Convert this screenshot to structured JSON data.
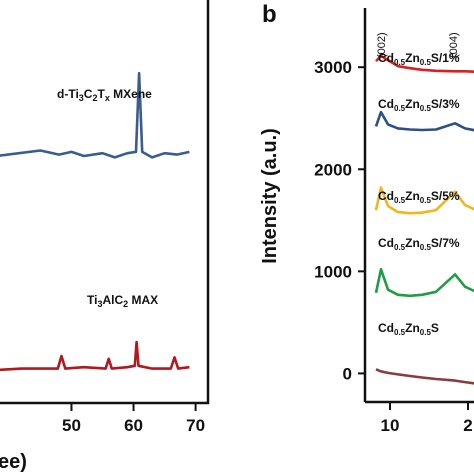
{
  "chart_data": [
    {
      "type": "line",
      "xlabel": "ee)",
      "ylabel": "",
      "xlim": [
        38,
        72
      ],
      "x_ticks": [
        "50",
        "60",
        "70"
      ],
      "tick_vals": [
        50,
        60,
        70
      ],
      "series": [
        {
          "name": "d-Ti3C2Tx MXene",
          "label_html": "d-Ti<tspan font-size='9' dy='3'>3</tspan><tspan dy='-3'>C</tspan><tspan font-size='9' dy='3'>2</tspan><tspan dy='-3'>T</tspan><tspan font-size='9' dy='3'>x</tspan><tspan dy='-3'> MXene</tspan>",
          "color": "#3a5d8f",
          "base": 0.0,
          "x": [
            38,
            45,
            48,
            50,
            52,
            55,
            57,
            59,
            60.4,
            60.9,
            61.4,
            63,
            65,
            67,
            69
          ],
          "y": [
            0,
            4,
            1,
            3,
            0,
            2,
            -1,
            2,
            3,
            60,
            3,
            -1,
            2,
            1,
            3
          ]
        },
        {
          "name": "Ti3AlC2 MAX",
          "label_html": "Ti<tspan font-size='9' dy='3'>3</tspan><tspan dy='-3'>AlC</tspan><tspan font-size='9' dy='3'>2</tspan><tspan dy='-3'> MAX</tspan>",
          "color": "#b0191e",
          "base": 0.0,
          "x": [
            38,
            42,
            47.8,
            48.4,
            49,
            52,
            55.5,
            56,
            56.5,
            59,
            60.2,
            60.5,
            60.8,
            63,
            66,
            66.6,
            67.2,
            69
          ],
          "y": [
            0,
            1,
            1,
            10,
            1,
            2,
            1,
            8,
            1,
            2,
            3,
            20,
            3,
            1,
            1,
            9,
            1,
            2
          ]
        }
      ]
    },
    {
      "type": "line",
      "ylabel": "Intensity (a.u.)",
      "ylim": [
        -280,
        3580
      ],
      "y_ticks": [
        "0",
        "1000",
        "2000",
        "3000"
      ],
      "y_tick_vals": [
        0,
        1000,
        2000,
        3000
      ],
      "x_ticks": [
        "10",
        "2"
      ],
      "peak_labels": [
        "(002)",
        "(004)"
      ],
      "series": [
        {
          "name": "Cd0.5Zn0.5S/1%",
          "label_html": "Cd<tspan font-size='8' dy='3'>0.5</tspan><tspan dy='-3'>Zn</tspan><tspan font-size='8' dy='3'>0.5</tspan><tspan dy='-3'>S/1%</tspan>",
          "color": "#d92020",
          "y": [
            3060,
            3110,
            3070,
            3010,
            2990,
            2975,
            2965,
            2960,
            2960,
            2955
          ]
        },
        {
          "name": "Cd0.5Zn0.5S/3%",
          "label_html": "Cd<tspan font-size='8' dy='3'>0.5</tspan><tspan dy='-3'>Zn</tspan><tspan font-size='8' dy='3'>0.5</tspan><tspan dy='-3'>S/3%</tspan>",
          "color": "#2c4f86",
          "y": [
            2420,
            2560,
            2440,
            2400,
            2390,
            2385,
            2390,
            2450,
            2400,
            2380
          ]
        },
        {
          "name": "Cd0.5Zn0.5S/5%",
          "label_html": "Cd<tspan font-size='8' dy='3'>0.5</tspan><tspan dy='-3'>Zn</tspan><tspan font-size='8' dy='3'>0.5</tspan><tspan dy='-3'>S/5%</tspan>",
          "color": "#f2b51c",
          "y": [
            1600,
            1820,
            1640,
            1580,
            1570,
            1575,
            1600,
            1780,
            1650,
            1600
          ]
        },
        {
          "name": "Cd0.5Zn0.5S/7%",
          "label_html": "Cd<tspan font-size='8' dy='3'>0.5</tspan><tspan dy='-3'>Zn</tspan><tspan font-size='8' dy='3'>0.5</tspan><tspan dy='-3'>S/7%</tspan>",
          "color": "#1f9d45",
          "y": [
            790,
            1020,
            820,
            770,
            760,
            770,
            800,
            970,
            850,
            800
          ]
        },
        {
          "name": "Cd0.5Zn0.5S",
          "label_html": "Cd<tspan font-size='8' dy='3'>0.5</tspan><tspan dy='-3'>Zn</tspan><tspan font-size='8' dy='3'>0.5</tspan><tspan dy='-3'>S</tspan>",
          "color": "#8a3b3b",
          "y": [
            40,
            20,
            5,
            -10,
            -25,
            -40,
            -55,
            -70,
            -85,
            -100
          ]
        }
      ]
    }
  ],
  "panel_b": "b"
}
